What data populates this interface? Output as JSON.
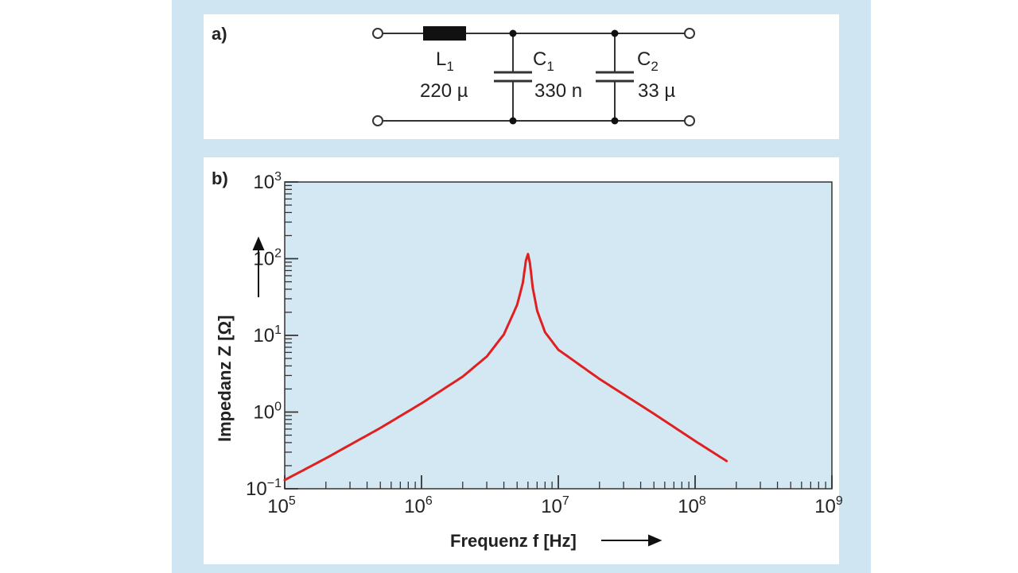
{
  "panel_a": {
    "label": "a)",
    "components": [
      {
        "symbol": "L",
        "index": "1",
        "value": "220 µ"
      },
      {
        "symbol": "C",
        "index": "1",
        "value": "330 n"
      },
      {
        "symbol": "C",
        "index": "2",
        "value": "33 µ"
      }
    ]
  },
  "panel_b": {
    "label": "b)"
  },
  "chart_data": {
    "type": "line",
    "xscale": "log",
    "yscale": "log",
    "xlim": [
      100000,
      1000000000
    ],
    "ylim": [
      0.1,
      1000
    ],
    "xlabel": "Frequenz f [Hz]",
    "ylabel": "Impedanz Z [Ω]",
    "x_ticks": [
      {
        "base": "10",
        "exp": "5"
      },
      {
        "base": "10",
        "exp": "6"
      },
      {
        "base": "10",
        "exp": "7"
      },
      {
        "base": "10",
        "exp": "8"
      },
      {
        "base": "10",
        "exp": "9"
      }
    ],
    "y_ticks": [
      {
        "base": "10",
        "exp": "−1"
      },
      {
        "base": "10",
        "exp": "0"
      },
      {
        "base": "10",
        "exp": "1"
      },
      {
        "base": "10",
        "exp": "2"
      },
      {
        "base": "10",
        "exp": "3"
      }
    ],
    "grid": false,
    "series": [
      {
        "color": "#e02020",
        "x": [
          100000,
          200000,
          500000,
          1000000,
          2000000,
          3000000,
          4000000,
          5000000,
          5500000,
          5800000,
          6000000,
          6200000,
          6500000,
          7000000,
          8000000,
          10000000,
          20000000,
          50000000,
          100000000,
          170000000
        ],
        "y": [
          0.13,
          0.25,
          0.62,
          1.3,
          2.9,
          5.3,
          10.3,
          25,
          48,
          95,
          115,
          88,
          42,
          21,
          11,
          6.5,
          2.7,
          0.95,
          0.42,
          0.23
        ]
      }
    ]
  },
  "colors": {
    "panel_background": "#cfe5f1",
    "plot_background": "#d4e8f3",
    "curve": "#e02020"
  }
}
